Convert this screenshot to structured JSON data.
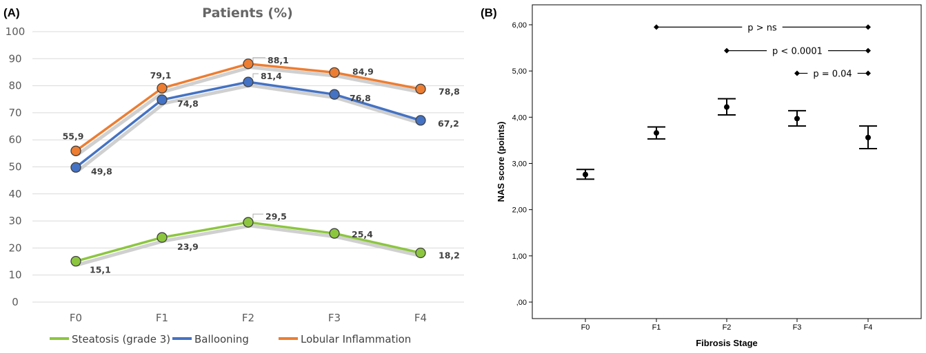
{
  "chart_data": [
    {
      "panel": "(A)",
      "type": "line",
      "title": "Patients (%)",
      "categories": [
        "F0",
        "F1",
        "F2",
        "F3",
        "F4"
      ],
      "ylim": [
        0,
        100
      ],
      "yticks": [
        0,
        10,
        20,
        30,
        40,
        50,
        60,
        70,
        80,
        90,
        100
      ],
      "grid": true,
      "legend_position": "bottom",
      "series": [
        {
          "name": "Steatosis (grade 3)",
          "color": "#8cc63f",
          "values": [
            15.1,
            23.9,
            29.5,
            25.4,
            18.2
          ],
          "labels": [
            "15,1",
            "23,9",
            "29,5",
            "25,4",
            "18,2"
          ]
        },
        {
          "name": "Ballooning",
          "color": "#4472c4",
          "values": [
            49.8,
            74.8,
            81.4,
            76.8,
            67.2
          ],
          "labels": [
            "49,8",
            "74,8",
            "81,4",
            "76,8",
            "67,2"
          ]
        },
        {
          "name": "Lobular Inflammation",
          "color": "#ed7d31",
          "values": [
            55.9,
            79.1,
            88.1,
            84.9,
            78.8
          ],
          "labels": [
            "55,9",
            "79,1",
            "88,1",
            "84,9",
            "78,8"
          ]
        }
      ]
    },
    {
      "panel": "(B)",
      "type": "scatter",
      "xlabel": "Fibrosis Stage",
      "ylabel": "NAS score (points)",
      "categories": [
        "F0",
        "F1",
        "F2",
        "F3",
        "F4"
      ],
      "ylim": [
        0,
        6.3
      ],
      "yticks": [
        0,
        1,
        2,
        3,
        4,
        5,
        6
      ],
      "ytick_labels": [
        ",00",
        "1,00",
        "2,00",
        "3,00",
        "4,00",
        "5,00",
        "6,00"
      ],
      "grid": false,
      "points": [
        {
          "category": "F0",
          "mean": 2.76,
          "lower": 2.66,
          "upper": 2.87
        },
        {
          "category": "F1",
          "mean": 3.66,
          "lower": 3.53,
          "upper": 3.79
        },
        {
          "category": "F2",
          "mean": 4.22,
          "lower": 4.05,
          "upper": 4.4
        },
        {
          "category": "F3",
          "mean": 3.97,
          "lower": 3.81,
          "upper": 4.14
        },
        {
          "category": "F4",
          "mean": 3.56,
          "lower": 3.32,
          "upper": 3.81
        }
      ],
      "comparisons": [
        {
          "from": "F1",
          "to": "F4",
          "y": 5.95,
          "label": "p > ns"
        },
        {
          "from": "F2",
          "to": "F4",
          "y": 5.44,
          "label": "p < 0.0001"
        },
        {
          "from": "F3",
          "to": "F4",
          "y": 4.95,
          "label": "p = 0.04"
        }
      ]
    }
  ]
}
